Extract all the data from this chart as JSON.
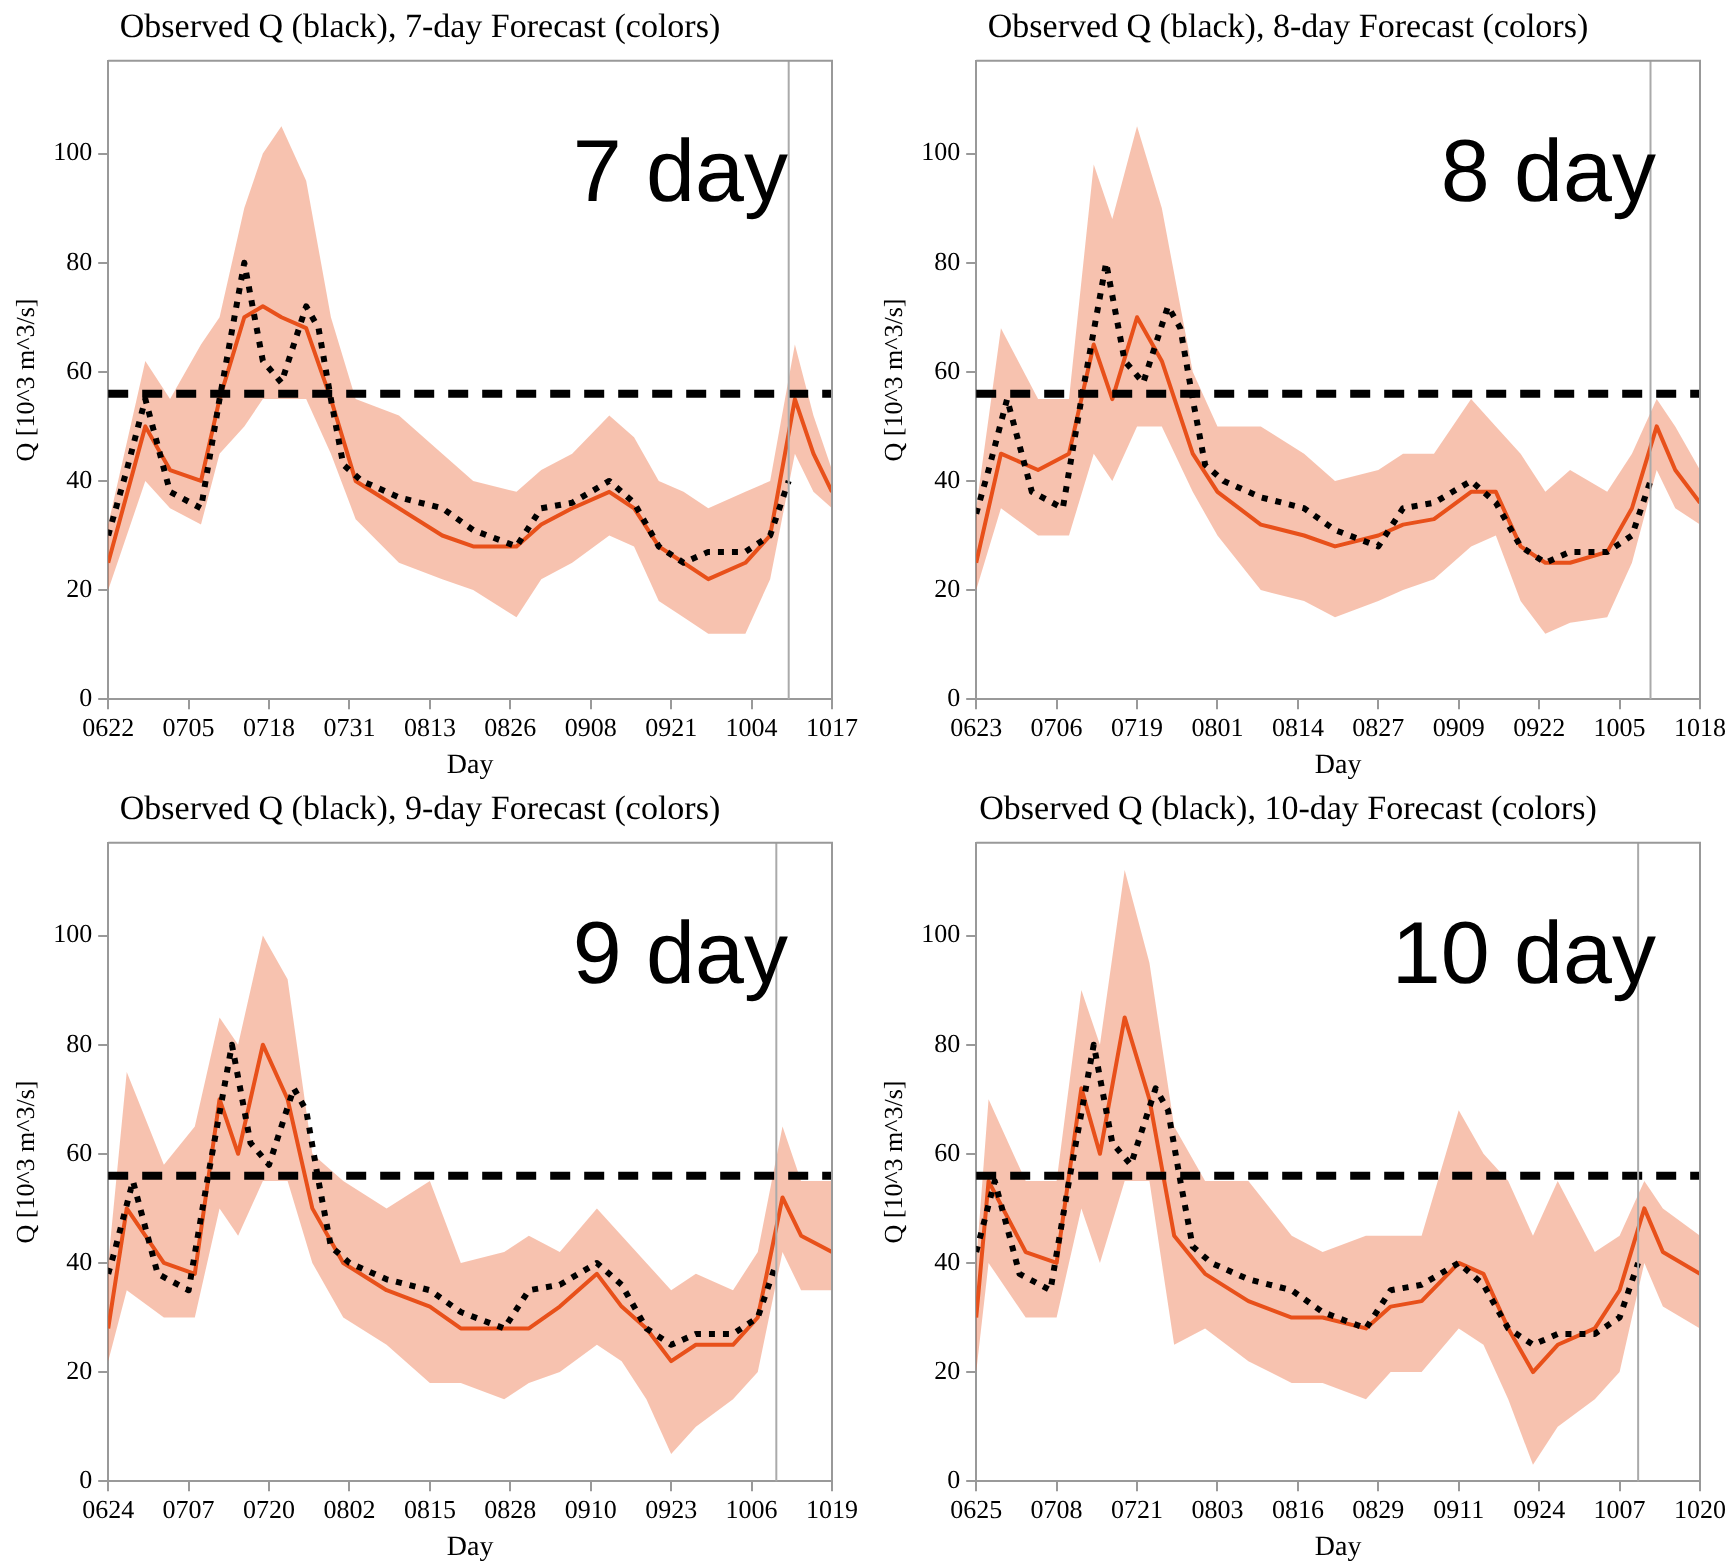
{
  "chart_data": [
    {
      "type": "line",
      "title": "Observed Q (black), 7-day Forecast (colors)",
      "xlabel": "Day",
      "ylabel": "Q [10^3 m^3/s]",
      "annotations": [
        "7 day"
      ],
      "marker": "none",
      "legend": false,
      "xlim": [
        "--06-22",
        "--10-17"
      ],
      "xticks": [
        {
          "value": "--06-22",
          "label": "0622"
        },
        {
          "value": "--07-05",
          "label": "0705"
        },
        {
          "value": "--07-18",
          "label": "0718"
        },
        {
          "value": "--07-31",
          "label": "0731"
        },
        {
          "value": "--08-13",
          "label": "0813"
        },
        {
          "value": "--08-26",
          "label": "0826"
        },
        {
          "value": "--09-08",
          "label": "0908"
        },
        {
          "value": "--09-21",
          "label": "0921"
        },
        {
          "value": "--10-04",
          "label": "1004"
        },
        {
          "value": "--10-17",
          "label": "1017"
        }
      ],
      "ylim": [
        0,
        117
      ],
      "yticks": [
        0,
        20,
        40,
        60,
        80,
        100
      ],
      "ref_lines": [
        {
          "axis": "y",
          "value": 56,
          "color": "#000000",
          "line_style": "dashed"
        },
        {
          "axis": "x",
          "value": "--10-10",
          "color": "#aaaaaa",
          "line_style": "solid"
        }
      ],
      "series": [
        {
          "color": "#e8501a",
          "line_style": "solid",
          "x": [
            "--06-22",
            "--06-28",
            "--07-02",
            "--07-07",
            "--07-10",
            "--07-14",
            "--07-17",
            "--07-20",
            "--07-24",
            "--07-28",
            "--08-01",
            "--08-08",
            "--08-15",
            "--08-20",
            "--08-27",
            "--08-31",
            "--09-05",
            "--09-11",
            "--09-15",
            "--09-19",
            "--09-23",
            "--09-27",
            "--10-03",
            "--10-07",
            "--10-11",
            "--10-14",
            "--10-17"
          ],
          "values": [
            25,
            50,
            42,
            40,
            55,
            70,
            72,
            70,
            68,
            55,
            40,
            35,
            30,
            28,
            28,
            32,
            35,
            38,
            35,
            28,
            25,
            22,
            25,
            30,
            55,
            45,
            38
          ],
          "lower": [
            20,
            40,
            35,
            32,
            45,
            50,
            55,
            55,
            55,
            45,
            33,
            25,
            22,
            20,
            15,
            22,
            25,
            30,
            28,
            18,
            15,
            12,
            12,
            22,
            45,
            38,
            35
          ],
          "upper": [
            32,
            62,
            55,
            65,
            70,
            90,
            100,
            105,
            95,
            70,
            55,
            52,
            45,
            40,
            38,
            42,
            45,
            52,
            48,
            40,
            38,
            35,
            38,
            40,
            65,
            52,
            42
          ]
        },
        {
          "color": "#000000",
          "line_style": "dotted",
          "x": [
            "--06-22",
            "--06-23",
            "--06-24",
            "--06-25",
            "--06-28",
            "--07-02",
            "--07-07",
            "--07-10",
            "--07-14",
            "--07-17",
            "--07-20",
            "--07-24",
            "--07-26",
            "--07-28",
            "--07-30",
            "--08-02",
            "--08-08",
            "--08-15",
            "--08-20",
            "--08-27",
            "--08-31",
            "--09-05",
            "--09-11",
            "--09-15",
            "--09-19",
            "--09-23",
            "--09-27",
            "--10-03",
            "--10-07",
            "--10-10"
          ],
          "values": [
            30,
            34,
            38,
            42,
            55,
            38,
            35,
            55,
            80,
            62,
            58,
            72,
            68,
            55,
            43,
            40,
            37,
            35,
            31,
            28,
            35,
            36,
            40,
            36,
            28,
            25,
            27,
            27,
            30,
            40
          ]
        }
      ]
    },
    {
      "type": "line",
      "title": "Observed Q (black), 8-day Forecast (colors)",
      "xlabel": "Day",
      "ylabel": "Q [10^3 m^3/s]",
      "annotations": [
        "8 day"
      ],
      "marker": "none",
      "legend": false,
      "xlim": [
        "--06-23",
        "--10-18"
      ],
      "xticks": [
        {
          "value": "--06-23",
          "label": "0623"
        },
        {
          "value": "--07-06",
          "label": "0706"
        },
        {
          "value": "--07-19",
          "label": "0719"
        },
        {
          "value": "--08-01",
          "label": "0801"
        },
        {
          "value": "--08-14",
          "label": "0814"
        },
        {
          "value": "--08-27",
          "label": "0827"
        },
        {
          "value": "--09-09",
          "label": "0909"
        },
        {
          "value": "--09-22",
          "label": "0922"
        },
        {
          "value": "--10-05",
          "label": "1005"
        },
        {
          "value": "--10-18",
          "label": "1018"
        }
      ],
      "ylim": [
        0,
        117
      ],
      "yticks": [
        0,
        20,
        40,
        60,
        80,
        100
      ],
      "ref_lines": [
        {
          "axis": "y",
          "value": 56,
          "color": "#000000",
          "line_style": "dashed"
        },
        {
          "axis": "x",
          "value": "--10-10",
          "color": "#aaaaaa",
          "line_style": "solid"
        }
      ],
      "series": [
        {
          "color": "#e8501a",
          "line_style": "solid",
          "x": [
            "--06-23",
            "--06-27",
            "--07-03",
            "--07-08",
            "--07-12",
            "--07-15",
            "--07-19",
            "--07-23",
            "--07-28",
            "--08-01",
            "--08-08",
            "--08-15",
            "--08-20",
            "--08-27",
            "--08-31",
            "--09-05",
            "--09-11",
            "--09-15",
            "--09-19",
            "--09-23",
            "--09-27",
            "--10-03",
            "--10-07",
            "--10-11",
            "--10-14",
            "--10-18"
          ],
          "values": [
            25,
            45,
            42,
            45,
            65,
            55,
            70,
            62,
            45,
            38,
            32,
            30,
            28,
            30,
            32,
            33,
            38,
            38,
            28,
            25,
            25,
            27,
            35,
            50,
            42,
            36
          ],
          "lower": [
            20,
            35,
            30,
            30,
            45,
            40,
            50,
            50,
            38,
            30,
            20,
            18,
            15,
            18,
            20,
            22,
            28,
            30,
            18,
            12,
            14,
            15,
            25,
            42,
            35,
            32
          ],
          "upper": [
            35,
            68,
            55,
            55,
            98,
            88,
            105,
            90,
            60,
            50,
            50,
            45,
            40,
            42,
            45,
            45,
            55,
            50,
            45,
            38,
            42,
            38,
            45,
            55,
            50,
            42
          ]
        },
        {
          "color": "#000000",
          "line_style": "dotted",
          "x": [
            "--06-23",
            "--06-24",
            "--06-25",
            "--06-28",
            "--07-02",
            "--07-07",
            "--07-10",
            "--07-14",
            "--07-17",
            "--07-20",
            "--07-24",
            "--07-26",
            "--07-28",
            "--07-30",
            "--08-02",
            "--08-08",
            "--08-15",
            "--08-20",
            "--08-27",
            "--08-31",
            "--09-05",
            "--09-11",
            "--09-15",
            "--09-19",
            "--09-23",
            "--09-27",
            "--10-03",
            "--10-07",
            "--10-10"
          ],
          "values": [
            34,
            38,
            42,
            55,
            38,
            35,
            55,
            80,
            62,
            58,
            72,
            68,
            55,
            43,
            40,
            37,
            35,
            31,
            28,
            35,
            36,
            40,
            36,
            28,
            25,
            27,
            27,
            30,
            40
          ]
        }
      ]
    },
    {
      "type": "line",
      "title": "Observed Q (black), 9-day Forecast (colors)",
      "xlabel": "Day",
      "ylabel": "Q [10^3 m^3/s]",
      "annotations": [
        "9 day"
      ],
      "marker": "none",
      "legend": false,
      "xlim": [
        "--06-24",
        "--10-19"
      ],
      "xticks": [
        {
          "value": "--06-24",
          "label": "0624"
        },
        {
          "value": "--07-07",
          "label": "0707"
        },
        {
          "value": "--07-20",
          "label": "0720"
        },
        {
          "value": "--08-02",
          "label": "0802"
        },
        {
          "value": "--08-15",
          "label": "0815"
        },
        {
          "value": "--08-28",
          "label": "0828"
        },
        {
          "value": "--09-10",
          "label": "0910"
        },
        {
          "value": "--09-23",
          "label": "0923"
        },
        {
          "value": "--10-06",
          "label": "1006"
        },
        {
          "value": "--10-19",
          "label": "1019"
        }
      ],
      "ylim": [
        0,
        117
      ],
      "yticks": [
        0,
        20,
        40,
        60,
        80,
        100
      ],
      "ref_lines": [
        {
          "axis": "y",
          "value": 56,
          "color": "#000000",
          "line_style": "dashed"
        },
        {
          "axis": "x",
          "value": "--10-10",
          "color": "#aaaaaa",
          "line_style": "solid"
        }
      ],
      "series": [
        {
          "color": "#e8501a",
          "line_style": "solid",
          "x": [
            "--06-24",
            "--06-27",
            "--07-03",
            "--07-08",
            "--07-12",
            "--07-15",
            "--07-19",
            "--07-23",
            "--07-27",
            "--08-01",
            "--08-08",
            "--08-15",
            "--08-20",
            "--08-27",
            "--08-31",
            "--09-05",
            "--09-11",
            "--09-15",
            "--09-19",
            "--09-23",
            "--09-27",
            "--10-03",
            "--10-07",
            "--10-11",
            "--10-14",
            "--10-19"
          ],
          "values": [
            28,
            50,
            40,
            38,
            70,
            60,
            80,
            70,
            50,
            40,
            35,
            32,
            28,
            28,
            28,
            32,
            38,
            32,
            28,
            22,
            25,
            25,
            30,
            52,
            45,
            42
          ],
          "lower": [
            22,
            35,
            30,
            30,
            50,
            45,
            55,
            55,
            40,
            30,
            25,
            18,
            18,
            15,
            18,
            20,
            25,
            22,
            15,
            5,
            10,
            15,
            20,
            42,
            35,
            35
          ],
          "upper": [
            40,
            75,
            58,
            65,
            85,
            80,
            100,
            92,
            60,
            55,
            50,
            55,
            40,
            42,
            45,
            42,
            50,
            45,
            40,
            35,
            38,
            35,
            42,
            65,
            55,
            55
          ]
        },
        {
          "color": "#000000",
          "line_style": "dotted",
          "x": [
            "--06-24",
            "--06-25",
            "--06-28",
            "--07-02",
            "--07-07",
            "--07-10",
            "--07-14",
            "--07-17",
            "--07-20",
            "--07-24",
            "--07-26",
            "--07-28",
            "--07-30",
            "--08-02",
            "--08-08",
            "--08-15",
            "--08-20",
            "--08-27",
            "--08-31",
            "--09-05",
            "--09-11",
            "--09-15",
            "--09-19",
            "--09-23",
            "--09-27",
            "--10-03",
            "--10-07",
            "--10-10"
          ],
          "values": [
            38,
            42,
            55,
            38,
            35,
            55,
            80,
            62,
            58,
            72,
            68,
            55,
            43,
            40,
            37,
            35,
            31,
            28,
            35,
            36,
            40,
            36,
            28,
            25,
            27,
            27,
            30,
            40
          ]
        }
      ]
    },
    {
      "type": "line",
      "title": "Observed Q (black), 10-day Forecast (colors)",
      "xlabel": "Day",
      "ylabel": "Q [10^3 m^3/s]",
      "annotations": [
        "10 day"
      ],
      "marker": "none",
      "legend": false,
      "xlim": [
        "--06-25",
        "--10-20"
      ],
      "xticks": [
        {
          "value": "--06-25",
          "label": "0625"
        },
        {
          "value": "--07-08",
          "label": "0708"
        },
        {
          "value": "--07-21",
          "label": "0721"
        },
        {
          "value": "--08-03",
          "label": "0803"
        },
        {
          "value": "--08-16",
          "label": "0816"
        },
        {
          "value": "--08-29",
          "label": "0829"
        },
        {
          "value": "--09-11",
          "label": "0911"
        },
        {
          "value": "--09-24",
          "label": "0924"
        },
        {
          "value": "--10-07",
          "label": "1007"
        },
        {
          "value": "--10-20",
          "label": "1020"
        }
      ],
      "ylim": [
        0,
        117
      ],
      "yticks": [
        0,
        20,
        40,
        60,
        80,
        100
      ],
      "ref_lines": [
        {
          "axis": "y",
          "value": 56,
          "color": "#000000",
          "line_style": "dashed"
        },
        {
          "axis": "x",
          "value": "--10-10",
          "color": "#aaaaaa",
          "line_style": "solid"
        }
      ],
      "series": [
        {
          "color": "#e8501a",
          "line_style": "solid",
          "x": [
            "--06-25",
            "--06-27",
            "--07-03",
            "--07-08",
            "--07-12",
            "--07-15",
            "--07-19",
            "--07-23",
            "--07-27",
            "--08-01",
            "--08-08",
            "--08-15",
            "--08-20",
            "--08-27",
            "--08-31",
            "--09-05",
            "--09-11",
            "--09-15",
            "--09-19",
            "--09-23",
            "--09-27",
            "--10-03",
            "--10-07",
            "--10-11",
            "--10-14",
            "--10-20"
          ],
          "values": [
            30,
            55,
            42,
            40,
            72,
            60,
            85,
            70,
            45,
            38,
            33,
            30,
            30,
            28,
            32,
            33,
            40,
            38,
            28,
            20,
            25,
            28,
            35,
            50,
            42,
            38
          ],
          "lower": [
            20,
            40,
            30,
            30,
            50,
            40,
            55,
            55,
            25,
            28,
            22,
            18,
            18,
            15,
            20,
            20,
            28,
            25,
            15,
            3,
            10,
            15,
            20,
            40,
            32,
            28
          ],
          "upper": [
            40,
            70,
            55,
            55,
            90,
            80,
            112,
            95,
            65,
            55,
            55,
            45,
            42,
            45,
            45,
            45,
            68,
            60,
            55,
            45,
            55,
            42,
            45,
            55,
            50,
            45
          ]
        },
        {
          "color": "#000000",
          "line_style": "dotted",
          "x": [
            "--06-25",
            "--06-28",
            "--07-02",
            "--07-07",
            "--07-10",
            "--07-14",
            "--07-17",
            "--07-20",
            "--07-24",
            "--07-26",
            "--07-28",
            "--07-30",
            "--08-02",
            "--08-08",
            "--08-15",
            "--08-20",
            "--08-27",
            "--08-31",
            "--09-05",
            "--09-11",
            "--09-15",
            "--09-19",
            "--09-23",
            "--09-27",
            "--10-03",
            "--10-07",
            "--10-10"
          ],
          "values": [
            42,
            55,
            38,
            35,
            55,
            80,
            62,
            58,
            72,
            68,
            55,
            43,
            40,
            37,
            35,
            31,
            28,
            35,
            36,
            40,
            36,
            28,
            25,
            27,
            27,
            30,
            40
          ]
        }
      ]
    }
  ]
}
